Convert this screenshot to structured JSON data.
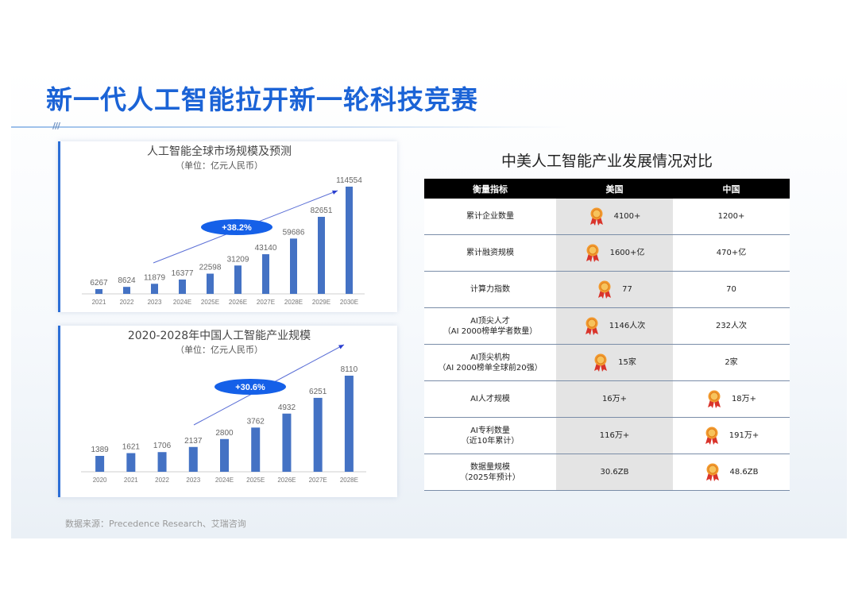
{
  "title": "新一代人工智能拉开新一轮科技竞赛",
  "title_slashes": "///",
  "accent_color": "#1b63d6",
  "bar_color": "#4472c4",
  "growth_badge_color": "#1560e8",
  "chart_data": [
    {
      "type": "bar",
      "title": "人工智能全球市场规模及预测",
      "subtitle": "（单位：亿元人民币）",
      "categories": [
        "2021",
        "2022",
        "2023",
        "2024E",
        "2025E",
        "2026E",
        "2027E",
        "2028E",
        "2029E",
        "2030E"
      ],
      "values": [
        6267,
        8624,
        11879,
        16377,
        22598,
        31209,
        43140,
        59686,
        82651,
        114554
      ],
      "growth_label": "+38.2%"
    },
    {
      "type": "bar",
      "title": "2020-2028年中国人工智能产业规模",
      "subtitle": "（单位：亿元人民币）",
      "categories": [
        "2020",
        "2021",
        "2022",
        "2023",
        "2024E",
        "2025E",
        "2026E",
        "2027E",
        "2028E"
      ],
      "values": [
        1389,
        1621,
        1706,
        2137,
        2800,
        3762,
        4932,
        6251,
        8110
      ],
      "growth_label": "+30.6%"
    }
  ],
  "comparison": {
    "title": "中美人工智能产业发展情况对比",
    "headers": [
      "衡量指标",
      "美国",
      "中国"
    ],
    "rows": [
      {
        "metric_line1": "累计企业数量",
        "metric_line2": "",
        "us": "4100+",
        "cn": "1200+",
        "leader": "us"
      },
      {
        "metric_line1": "累计融资规模",
        "metric_line2": "",
        "us": "1600+亿",
        "cn": "470+亿",
        "leader": "us"
      },
      {
        "metric_line1": "计算力指数",
        "metric_line2": "",
        "us": "77",
        "cn": "70",
        "leader": "us"
      },
      {
        "metric_line1": "AI顶尖人才",
        "metric_line2": "（AI 2000榜单学者数量）",
        "us": "1146人次",
        "cn": "232人次",
        "leader": "us"
      },
      {
        "metric_line1": "AI顶尖机构",
        "metric_line2": "（AI 2000榜单全球前20强）",
        "us": "15家",
        "cn": "2家",
        "leader": "us"
      },
      {
        "metric_line1": "AI人才规模",
        "metric_line2": "",
        "us": "16万+",
        "cn": "18万+",
        "leader": "cn"
      },
      {
        "metric_line1": "AI专利数量",
        "metric_line2": "（近10年累计）",
        "us": "116万+",
        "cn": "191万+",
        "leader": "cn"
      },
      {
        "metric_line1": "数据量规模",
        "metric_line2": "（2025年预计）",
        "us": "30.6ZB",
        "cn": "48.6ZB",
        "leader": "cn"
      }
    ],
    "medal_icon": "medal-icon"
  },
  "source": "数据来源：Precedence Research、艾瑞咨询"
}
